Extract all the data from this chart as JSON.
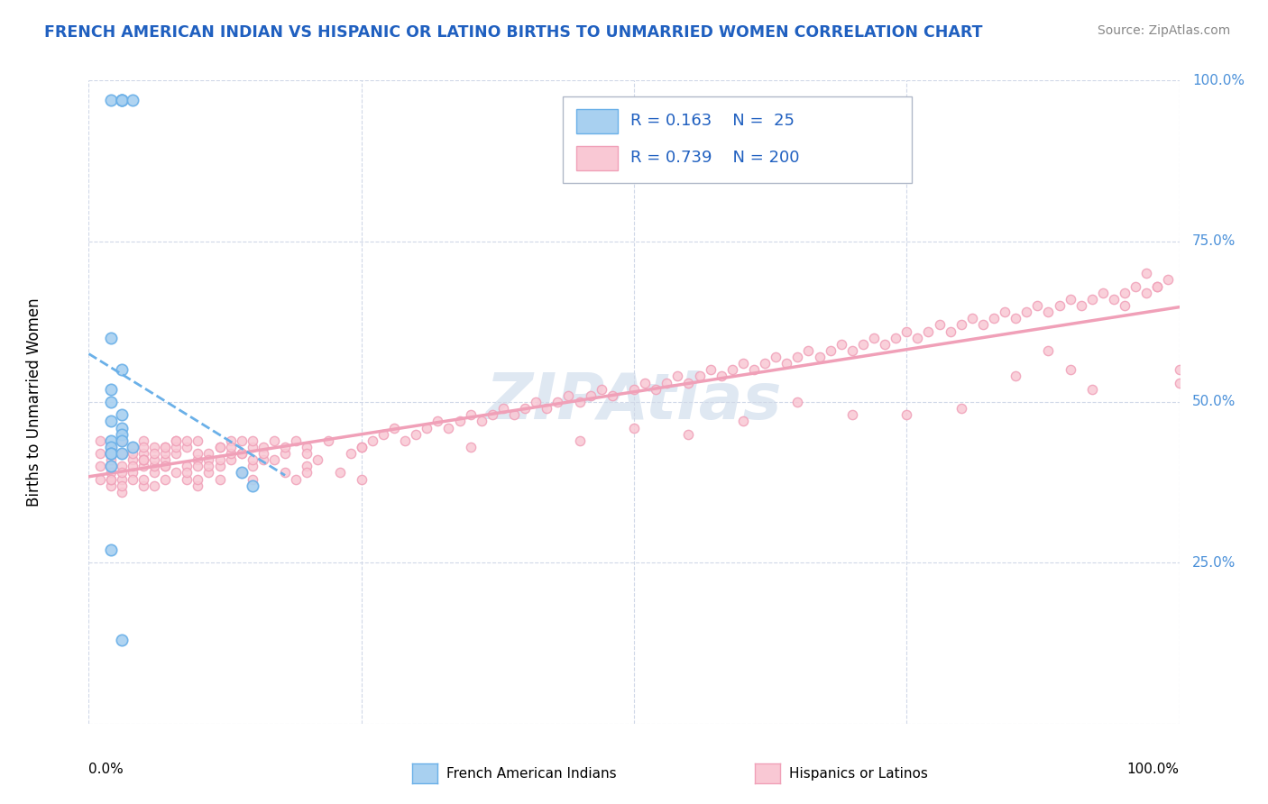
{
  "title": "FRENCH AMERICAN INDIAN VS HISPANIC OR LATINO BIRTHS TO UNMARRIED WOMEN CORRELATION CHART",
  "source": "Source: ZipAtlas.com",
  "ylabel": "Births to Unmarried Women",
  "right_yticks": [
    0.25,
    0.5,
    0.75,
    1.0
  ],
  "right_yticklabels": [
    "25.0%",
    "50.0%",
    "75.0%",
    "100.0%"
  ],
  "blue_color": "#6ab0e8",
  "blue_fill": "#a8d0f0",
  "pink_color": "#f0a0b8",
  "pink_fill": "#f9c8d4",
  "legend_R1": "0.163",
  "legend_N1": "25",
  "legend_R2": "0.739",
  "legend_N2": "200",
  "watermark": "ZIPAtlas",
  "bg_color": "#ffffff",
  "grid_color": "#d0d8e8",
  "blue_scatter_x": [
    0.02,
    0.03,
    0.03,
    0.03,
    0.04,
    0.02,
    0.03,
    0.02,
    0.02,
    0.03,
    0.02,
    0.03,
    0.03,
    0.02,
    0.03,
    0.02,
    0.04,
    0.02,
    0.02,
    0.03,
    0.02,
    0.14,
    0.15,
    0.02,
    0.03
  ],
  "blue_scatter_y": [
    0.97,
    0.97,
    0.97,
    0.97,
    0.97,
    0.6,
    0.55,
    0.52,
    0.5,
    0.48,
    0.47,
    0.46,
    0.45,
    0.44,
    0.44,
    0.43,
    0.43,
    0.42,
    0.42,
    0.42,
    0.4,
    0.39,
    0.37,
    0.27,
    0.13
  ],
  "pink_scatter_x": [
    0.01,
    0.01,
    0.01,
    0.02,
    0.02,
    0.02,
    0.02,
    0.02,
    0.02,
    0.02,
    0.03,
    0.03,
    0.03,
    0.03,
    0.03,
    0.03,
    0.04,
    0.04,
    0.04,
    0.04,
    0.05,
    0.05,
    0.05,
    0.05,
    0.05,
    0.05,
    0.06,
    0.06,
    0.06,
    0.06,
    0.07,
    0.07,
    0.07,
    0.07,
    0.08,
    0.08,
    0.08,
    0.09,
    0.09,
    0.09,
    0.1,
    0.1,
    0.1,
    0.11,
    0.11,
    0.12,
    0.12,
    0.12,
    0.13,
    0.13,
    0.14,
    0.14,
    0.15,
    0.15,
    0.16,
    0.16,
    0.17,
    0.18,
    0.18,
    0.19,
    0.2,
    0.2,
    0.21,
    0.22,
    0.23,
    0.24,
    0.25,
    0.26,
    0.27,
    0.28,
    0.29,
    0.3,
    0.31,
    0.32,
    0.33,
    0.34,
    0.35,
    0.36,
    0.37,
    0.38,
    0.39,
    0.4,
    0.41,
    0.42,
    0.43,
    0.44,
    0.45,
    0.46,
    0.47,
    0.48,
    0.5,
    0.51,
    0.52,
    0.53,
    0.54,
    0.55,
    0.56,
    0.57,
    0.58,
    0.59,
    0.6,
    0.61,
    0.62,
    0.63,
    0.64,
    0.65,
    0.66,
    0.67,
    0.68,
    0.69,
    0.7,
    0.71,
    0.72,
    0.73,
    0.74,
    0.75,
    0.76,
    0.77,
    0.78,
    0.79,
    0.8,
    0.81,
    0.82,
    0.83,
    0.84,
    0.85,
    0.86,
    0.87,
    0.88,
    0.89,
    0.9,
    0.91,
    0.92,
    0.93,
    0.94,
    0.95,
    0.96,
    0.97,
    0.98,
    0.99,
    1.0,
    0.03,
    0.04,
    0.05,
    0.06,
    0.07,
    0.08,
    0.09,
    0.1,
    0.11,
    0.12,
    0.13,
    0.14,
    0.15,
    0.16,
    0.17,
    0.18,
    0.19,
    0.5,
    0.6,
    0.7,
    0.8,
    0.9,
    1.0,
    0.95,
    0.97,
    0.98,
    0.92,
    0.88,
    0.85,
    0.75,
    0.65,
    0.55,
    0.45,
    0.35,
    0.25,
    0.2,
    0.15,
    0.1,
    0.07,
    0.05,
    0.03,
    0.02,
    0.01,
    0.02,
    0.03,
    0.04,
    0.05,
    0.06,
    0.07,
    0.08,
    0.09,
    0.1,
    0.11,
    0.12,
    0.13,
    0.14,
    0.15,
    0.2,
    0.25
  ],
  "pink_scatter_y": [
    0.38,
    0.42,
    0.4,
    0.37,
    0.4,
    0.42,
    0.38,
    0.41,
    0.43,
    0.39,
    0.36,
    0.38,
    0.42,
    0.4,
    0.44,
    0.37,
    0.39,
    0.41,
    0.38,
    0.43,
    0.37,
    0.4,
    0.42,
    0.44,
    0.38,
    0.41,
    0.39,
    0.43,
    0.4,
    0.37,
    0.38,
    0.41,
    0.43,
    0.4,
    0.39,
    0.42,
    0.44,
    0.38,
    0.4,
    0.43,
    0.37,
    0.41,
    0.44,
    0.39,
    0.42,
    0.38,
    0.4,
    0.43,
    0.41,
    0.44,
    0.39,
    0.42,
    0.38,
    0.4,
    0.43,
    0.41,
    0.44,
    0.39,
    0.42,
    0.38,
    0.4,
    0.43,
    0.41,
    0.44,
    0.39,
    0.42,
    0.43,
    0.44,
    0.45,
    0.46,
    0.44,
    0.45,
    0.46,
    0.47,
    0.46,
    0.47,
    0.48,
    0.47,
    0.48,
    0.49,
    0.48,
    0.49,
    0.5,
    0.49,
    0.5,
    0.51,
    0.5,
    0.51,
    0.52,
    0.51,
    0.52,
    0.53,
    0.52,
    0.53,
    0.54,
    0.53,
    0.54,
    0.55,
    0.54,
    0.55,
    0.56,
    0.55,
    0.56,
    0.57,
    0.56,
    0.57,
    0.58,
    0.57,
    0.58,
    0.59,
    0.58,
    0.59,
    0.6,
    0.59,
    0.6,
    0.61,
    0.6,
    0.61,
    0.62,
    0.61,
    0.62,
    0.63,
    0.62,
    0.63,
    0.64,
    0.63,
    0.64,
    0.65,
    0.64,
    0.65,
    0.66,
    0.65,
    0.66,
    0.67,
    0.66,
    0.67,
    0.68,
    0.67,
    0.68,
    0.69,
    0.55,
    0.44,
    0.42,
    0.43,
    0.41,
    0.42,
    0.43,
    0.44,
    0.42,
    0.41,
    0.43,
    0.42,
    0.44,
    0.43,
    0.42,
    0.41,
    0.43,
    0.44,
    0.46,
    0.47,
    0.48,
    0.49,
    0.55,
    0.53,
    0.65,
    0.7,
    0.68,
    0.52,
    0.58,
    0.54,
    0.48,
    0.5,
    0.45,
    0.44,
    0.43,
    0.43,
    0.42,
    0.41,
    0.4,
    0.4,
    0.41,
    0.42,
    0.43,
    0.44,
    0.38,
    0.39,
    0.4,
    0.41,
    0.42,
    0.43,
    0.44,
    0.39,
    0.38,
    0.4,
    0.41,
    0.43,
    0.42,
    0.44,
    0.39,
    0.38
  ]
}
